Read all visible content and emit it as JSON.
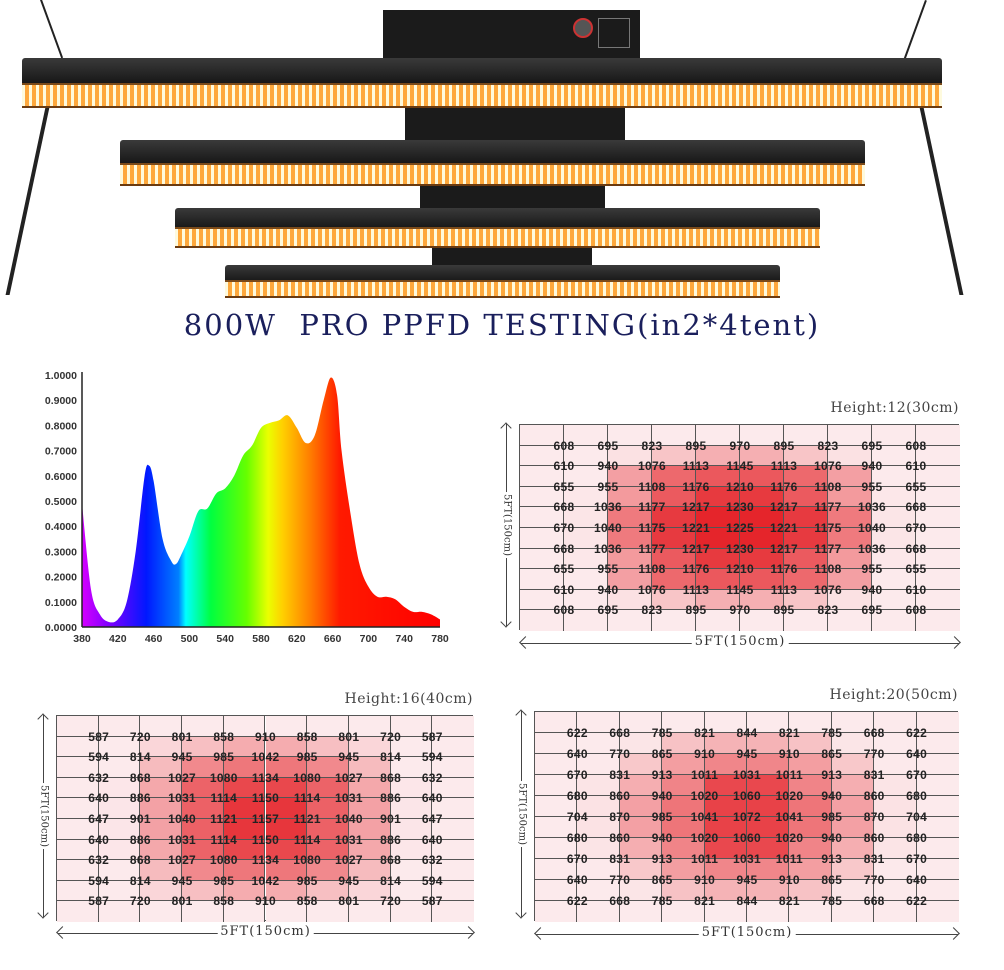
{
  "title": "800W  PRO PPFD TESTING(in2*4tent)",
  "chart_data": [
    {
      "type": "area",
      "title": "",
      "xlabel": "",
      "ylabel": "",
      "xlim": [
        380,
        780
      ],
      "ylim": [
        0,
        1
      ],
      "x_ticks": [
        "380",
        "420",
        "460",
        "500",
        "540",
        "580",
        "620",
        "660",
        "700",
        "740",
        "780"
      ],
      "y_ticks": [
        "0.0000",
        "0.1000",
        "0.2000",
        "0.3000",
        "0.4000",
        "0.5000",
        "0.6000",
        "0.7000",
        "0.8000",
        "0.9000",
        "1.0000"
      ],
      "x": [
        380,
        390,
        400,
        410,
        420,
        430,
        440,
        450,
        455,
        460,
        470,
        480,
        485,
        490,
        500,
        510,
        520,
        530,
        540,
        550,
        560,
        570,
        580,
        590,
        600,
        610,
        620,
        630,
        640,
        650,
        658,
        665,
        670,
        680,
        690,
        700,
        710,
        720,
        730,
        740,
        750,
        760,
        770,
        780
      ],
      "y": [
        0.49,
        0.15,
        0.05,
        0.02,
        0.03,
        0.1,
        0.3,
        0.6,
        0.64,
        0.58,
        0.35,
        0.26,
        0.25,
        0.28,
        0.36,
        0.46,
        0.47,
        0.53,
        0.55,
        0.6,
        0.68,
        0.72,
        0.79,
        0.81,
        0.82,
        0.84,
        0.79,
        0.73,
        0.76,
        0.9,
        0.99,
        0.92,
        0.7,
        0.45,
        0.25,
        0.16,
        0.12,
        0.12,
        0.11,
        0.08,
        0.06,
        0.06,
        0.05,
        0.03
      ]
    },
    {
      "type": "heatmap",
      "title": "Height:12(30cm)",
      "xlabel": "5FT(150cm)",
      "ylabel": "5FT(150cm)",
      "values": [
        [
          608,
          695,
          823,
          895,
          970,
          895,
          823,
          695,
          608
        ],
        [
          610,
          940,
          1076,
          1113,
          1145,
          1113,
          1076,
          940,
          610
        ],
        [
          655,
          955,
          1108,
          1176,
          1210,
          1176,
          1108,
          955,
          655
        ],
        [
          668,
          1036,
          1177,
          1217,
          1230,
          1217,
          1177,
          1036,
          668
        ],
        [
          670,
          1040,
          1175,
          1221,
          1225,
          1221,
          1175,
          1040,
          670
        ],
        [
          668,
          1036,
          1177,
          1217,
          1230,
          1217,
          1177,
          1036,
          668
        ],
        [
          655,
          955,
          1108,
          1176,
          1210,
          1176,
          1108,
          955,
          655
        ],
        [
          610,
          940,
          1076,
          1113,
          1145,
          1113,
          1076,
          940,
          610
        ],
        [
          608,
          695,
          823,
          895,
          970,
          895,
          823,
          695,
          608
        ]
      ]
    },
    {
      "type": "heatmap",
      "title": "Height:16(40cm)",
      "xlabel": "5FT(150cm)",
      "ylabel": "5FT(150cm)",
      "values": [
        [
          587,
          720,
          801,
          858,
          910,
          858,
          801,
          720,
          587
        ],
        [
          594,
          814,
          945,
          985,
          1042,
          985,
          945,
          814,
          594
        ],
        [
          632,
          868,
          1027,
          1080,
          1134,
          1080,
          1027,
          868,
          632
        ],
        [
          640,
          886,
          1031,
          1114,
          1150,
          1114,
          1031,
          886,
          640
        ],
        [
          647,
          901,
          1040,
          1121,
          1157,
          1121,
          1040,
          901,
          647
        ],
        [
          640,
          886,
          1031,
          1114,
          1150,
          1114,
          1031,
          886,
          640
        ],
        [
          632,
          868,
          1027,
          1080,
          1134,
          1080,
          1027,
          868,
          632
        ],
        [
          594,
          814,
          945,
          985,
          1042,
          985,
          945,
          814,
          594
        ],
        [
          587,
          720,
          801,
          858,
          910,
          858,
          801,
          720,
          587
        ]
      ]
    },
    {
      "type": "heatmap",
      "title": "Height:20(50cm)",
      "xlabel": "5FT(150cm)",
      "ylabel": "5FT(150cm)",
      "values": [
        [
          622,
          668,
          785,
          821,
          844,
          821,
          785,
          668,
          622
        ],
        [
          640,
          770,
          865,
          910,
          945,
          910,
          865,
          770,
          640
        ],
        [
          670,
          831,
          913,
          1011,
          1031,
          1011,
          913,
          831,
          670
        ],
        [
          680,
          860,
          940,
          1020,
          1060,
          1020,
          940,
          860,
          680
        ],
        [
          704,
          870,
          985,
          1041,
          1072,
          1041,
          985,
          870,
          704
        ],
        [
          680,
          860,
          940,
          1020,
          1060,
          1020,
          940,
          860,
          680
        ],
        [
          670,
          831,
          913,
          1011,
          1031,
          1011,
          913,
          831,
          670
        ],
        [
          640,
          770,
          865,
          910,
          945,
          910,
          865,
          770,
          640
        ],
        [
          622,
          668,
          785,
          821,
          844,
          821,
          785,
          668,
          622
        ]
      ]
    }
  ],
  "colors": {
    "title": "#1a1f5c",
    "heat_low": "#fbe8ea",
    "heat_high": "#e31e24"
  }
}
